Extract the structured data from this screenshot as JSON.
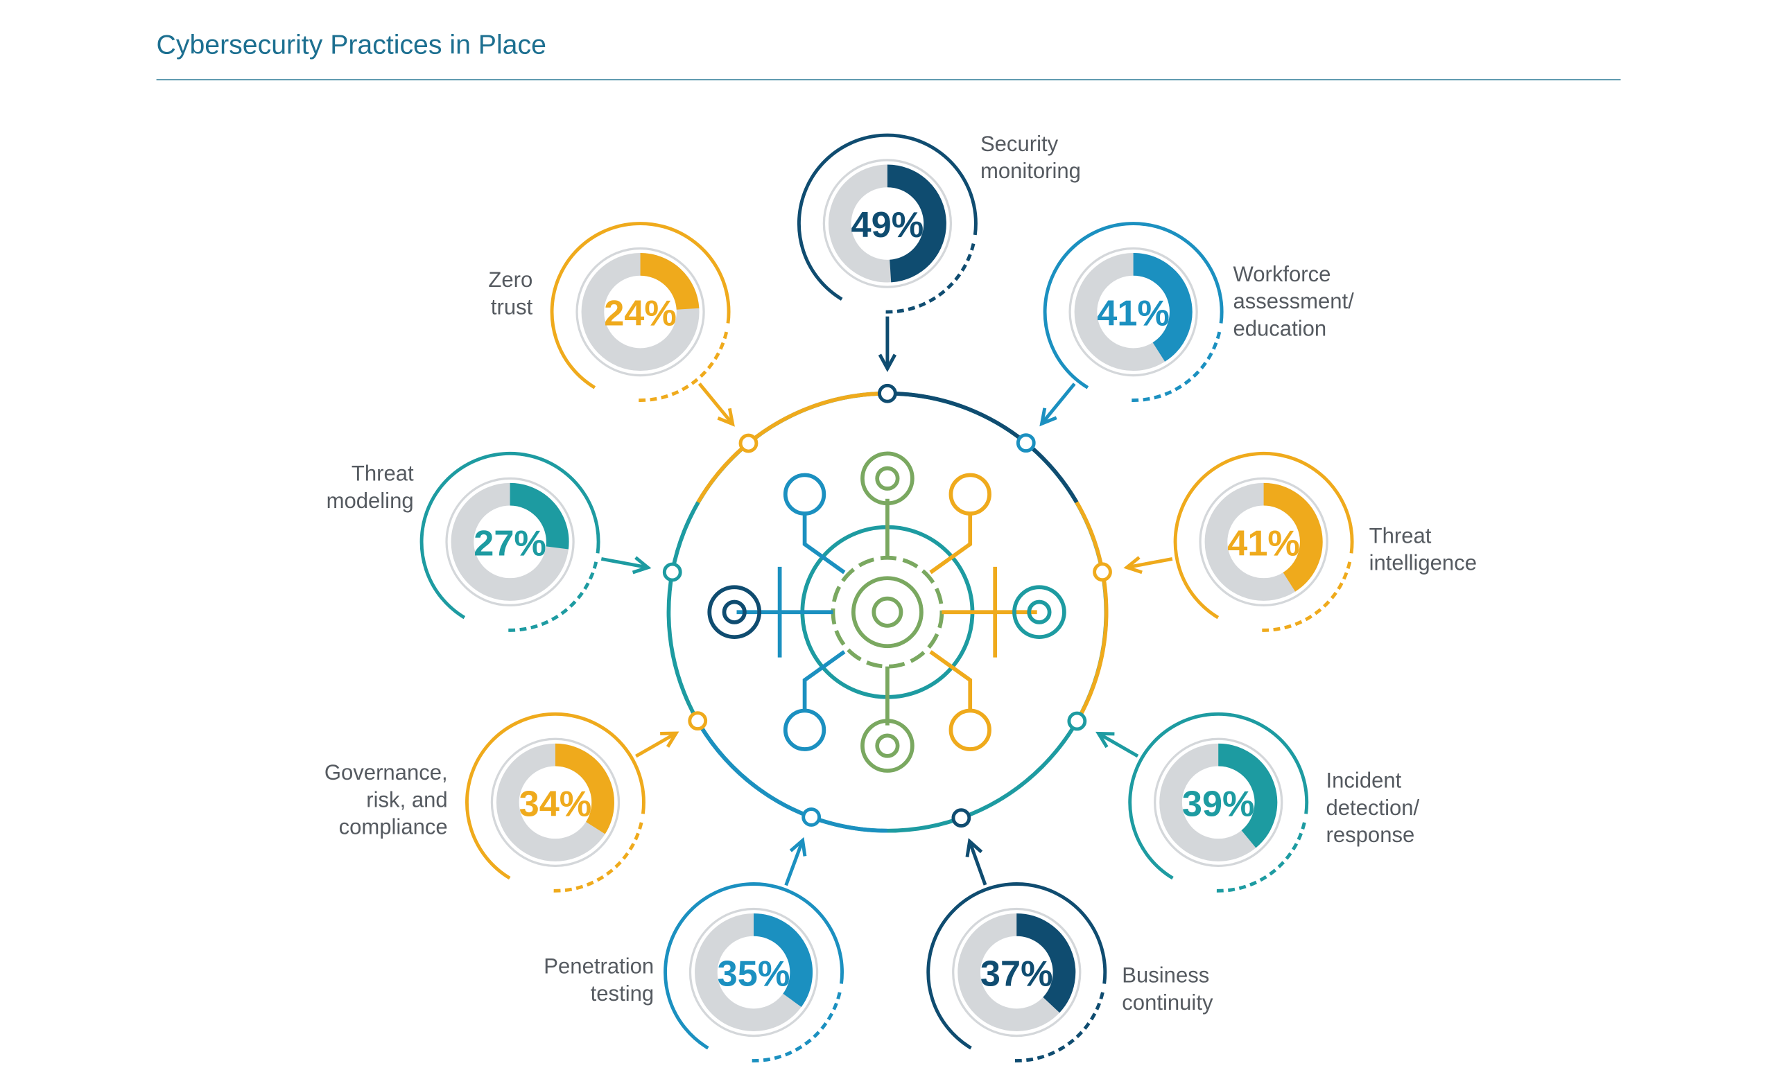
{
  "chart_data": {
    "type": "donut",
    "title": "Cybersecurity Practices in Place",
    "categories": [
      "Security monitoring",
      "Workforce assessment/ education",
      "Threat intelligence",
      "Incident detection/ response",
      "Business continuity",
      "Penetration testing",
      "Governance, risk, and compliance",
      "Threat modeling",
      "Zero trust"
    ],
    "values": [
      49,
      41,
      41,
      39,
      37,
      35,
      34,
      27,
      24
    ],
    "value_labels": [
      "49%",
      "41%",
      "41%",
      "39%",
      "37%",
      "35%",
      "34%",
      "27%",
      "24%"
    ],
    "colors": [
      "#0f4c70",
      "#1b90c0",
      "#efaa1c",
      "#1d9ba1",
      "#0f4c70",
      "#1b90c0",
      "#efaa1c",
      "#1d9ba1",
      "#efaa1c"
    ],
    "ylim": [
      0,
      100
    ]
  }
}
